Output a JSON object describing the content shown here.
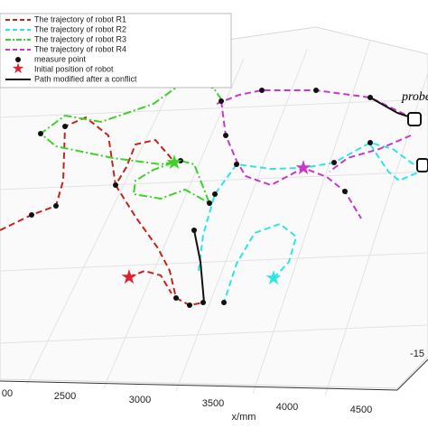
{
  "legend": {
    "items": [
      "The trajectory of robot R1",
      "The trajectory of robot R2",
      "The trajectory of robot R3",
      "The trajectory of robot R4",
      "measure point",
      "Initial position of robot",
      "Path modified after a conflict"
    ]
  },
  "x_axis": {
    "label": "x/mm",
    "ticks": [
      "00",
      "2500",
      "3000",
      "3500",
      "4000",
      "4500"
    ]
  },
  "y_axis": {
    "ticks": [
      "-15"
    ]
  },
  "annotation": "probe"
}
